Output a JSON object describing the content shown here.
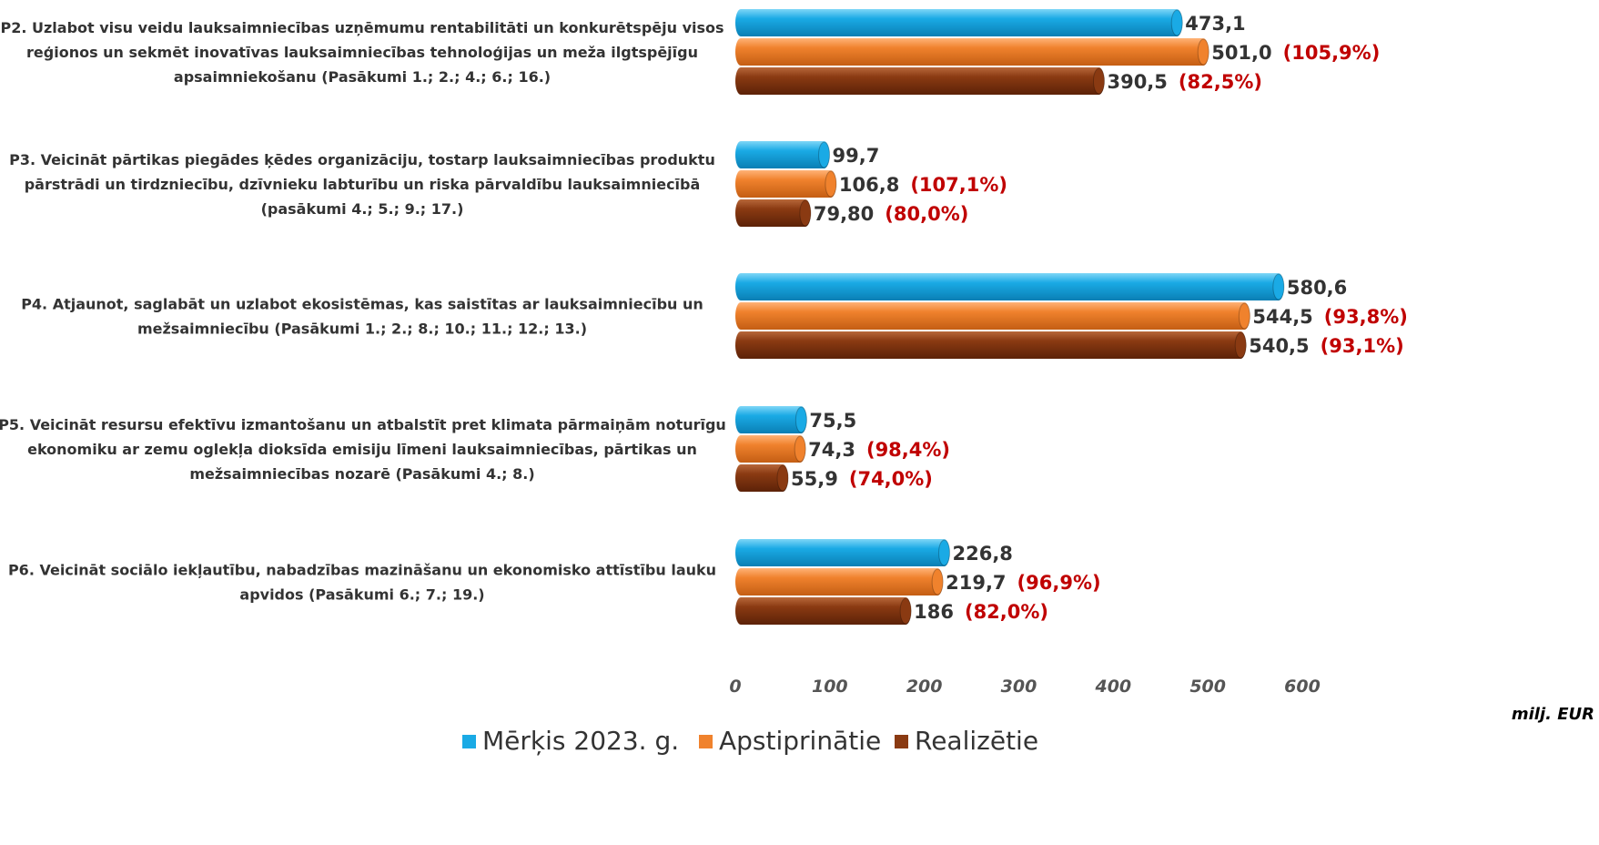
{
  "chart_data": {
    "type": "bar",
    "orientation": "horizontal",
    "categories": [
      "P2. Uzlabot visu veidu lauksaimniecības uzņēmumu rentabilitāti un konkurētspēju visos reģionos un sekmēt inovatīvas lauksaimniecības tehnoloģijas un meža ilgtspējīgu apsaimniekošanu (Pasākumi 1.; 2.; 4.; 6.; 16.)",
      "P3. Veicināt pārtikas piegādes ķēdes organizāciju, tostarp lauksaimniecības produktu pārstrādi un tirdzniecību, dzīvnieku labturību un riska pārvaldību lauksaimniecībā (pasākumi 4.; 5.; 9.; 17.)",
      "P4. Atjaunot, saglabāt un uzlabot ekosistēmas, kas saistītas ar lauksaimniecību un mežsaimniecību (Pasākumi 1.; 2.; 8.; 10.; 11.; 12.; 13.)",
      "P5. Veicināt resursu efektīvu izmantošanu un atbalstīt pret klimata pārmaiņām noturīgu ekonomiku ar zemu oglekļa dioksīda emisiju līmeni lauksaimniecības, pārtikas un mežsaimniecības nozarē (Pasākumi 4.; 8.)",
      "P6. Veicināt sociālo iekļautību, nabadzības mazināšanu un ekonomisko attīstību lauku apvidos (Pasākumi 6.; 7.; 19.)"
    ],
    "category_lines": [
      [
        "P2. Uzlabot visu veidu lauksaimniecības uzņēmumu rentabilitāti un konkurētspēju visos",
        "reģionos un sekmēt inovatīvas lauksaimniecības tehnoloģijas un meža ilgtspējīgu",
        "apsaimniekošanu (Pasākumi 1.; 2.; 4.; 6.; 16.)"
      ],
      [
        "P3. Veicināt pārtikas piegādes ķēdes organizāciju, tostarp lauksaimniecības produktu",
        "pārstrādi un tirdzniecību, dzīvnieku labturību un riska pārvaldību lauksaimniecībā",
        "(pasākumi 4.; 5.; 9.; 17.)"
      ],
      [
        "P4. Atjaunot, saglabāt un uzlabot ekosistēmas, kas saistītas ar lauksaimniecību un",
        "mežsaimniecību (Pasākumi 1.; 2.; 8.; 10.; 11.; 12.; 13.)"
      ],
      [
        "P5. Veicināt resursu efektīvu izmantošanu un atbalstīt pret klimata pārmaiņām noturīgu",
        "ekonomiku ar zemu oglekļa dioksīda emisiju līmeni lauksaimniecības, pārtikas un",
        "mežsaimniecības nozarē (Pasākumi 4.; 8.)"
      ],
      [
        "P6. Veicināt sociālo iekļautību, nabadzības mazināšanu un ekonomisko attīstību lauku",
        "apvidos (Pasākumi 6.; 7.; 19.)"
      ]
    ],
    "series": [
      {
        "name": "Mērķis 2023. g.",
        "color": "#1aaae5",
        "values": [
          473.1,
          99.7,
          580.6,
          75.5,
          226.8
        ],
        "value_labels": [
          "473,1",
          "99,7",
          "580,6",
          "75,5",
          "226,8"
        ],
        "pct_labels": [
          "",
          "",
          "",
          "",
          ""
        ]
      },
      {
        "name": "Apstiprinātie",
        "color": "#f0822d",
        "values": [
          501.0,
          106.8,
          544.5,
          74.3,
          219.7
        ],
        "value_labels": [
          "501,0",
          "106,8",
          "544,5",
          "74,3",
          "219,7"
        ],
        "pct_labels": [
          "(105,9%)",
          "(107,1%)",
          "(93,8%)",
          "(98,4%)",
          "(96,9%)"
        ]
      },
      {
        "name": "Realizētie",
        "color": "#8a3a12",
        "values": [
          390.5,
          79.8,
          540.5,
          55.9,
          186
        ],
        "value_labels": [
          "390,5",
          "79,80",
          "540,5",
          "55,9",
          "186"
        ],
        "pct_labels": [
          "(82,5%)",
          "(80,0%)",
          "(93,1%)",
          "(74,0%)",
          "(82,0%)"
        ]
      }
    ],
    "xlim": [
      0,
      600
    ],
    "xticks": [
      "0",
      "100",
      "200",
      "300",
      "400",
      "500",
      "600"
    ],
    "xtick_values": [
      0,
      100,
      200,
      300,
      400,
      500,
      600
    ],
    "xunit": "milj. EUR",
    "legend_position": "bottom",
    "grid": false
  }
}
